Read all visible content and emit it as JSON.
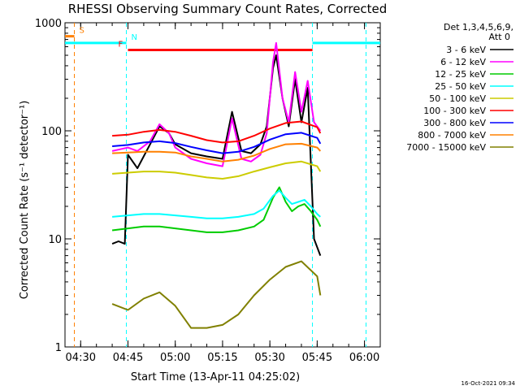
{
  "chart_data": {
    "type": "line",
    "title": "RHESSI Observing Summary Count Rates, Corrected",
    "xlabel": "Start Time (13-Apr-11 04:25:02)",
    "ylabel": "Corrected Count Rate (s⁻¹ detector⁻¹)",
    "yscale": "log",
    "ylim": [
      1,
      1000
    ],
    "xlim": [
      "04:25:02",
      "06:05:00"
    ],
    "x_ticks": [
      "04:30",
      "04:45",
      "05:00",
      "05:15",
      "05:30",
      "05:45",
      "06:00"
    ],
    "y_ticks": [
      "1",
      "10",
      "100",
      "1000"
    ],
    "legend_header": [
      "Det 1,3,4,5,6,9,",
      "Att 0"
    ],
    "legend_placement": "right",
    "series": [
      {
        "name": "3 - 6 keV",
        "color": "#000000",
        "x": [
          "04:40",
          "04:42",
          "04:44",
          "04:45",
          "04:48",
          "04:52",
          "04:55",
          "04:58",
          "05:00",
          "05:05",
          "05:10",
          "05:15",
          "05:18",
          "05:21",
          "05:24",
          "05:27",
          "05:29",
          "05:31",
          "05:32",
          "05:34",
          "05:36",
          "05:38",
          "05:40",
          "05:42",
          "05:44",
          "05:46"
        ],
        "values": [
          9,
          9.5,
          9,
          60,
          45,
          75,
          110,
          95,
          75,
          62,
          58,
          55,
          150,
          65,
          62,
          75,
          110,
          380,
          500,
          200,
          110,
          300,
          120,
          250,
          10,
          7
        ]
      },
      {
        "name": "6 - 12 keV",
        "color": "#ff00ff",
        "x": [
          "04:40",
          "04:43",
          "04:45",
          "04:48",
          "04:52",
          "04:55",
          "04:58",
          "05:00",
          "05:05",
          "05:10",
          "05:15",
          "05:18",
          "05:21",
          "05:24",
          "05:27",
          "05:29",
          "05:31",
          "05:32",
          "05:34",
          "05:36",
          "05:38",
          "05:40",
          "05:42",
          "05:44",
          "05:46"
        ],
        "values": [
          65,
          68,
          70,
          65,
          80,
          115,
          95,
          70,
          55,
          50,
          47,
          130,
          55,
          52,
          60,
          95,
          430,
          650,
          200,
          120,
          350,
          150,
          290,
          120,
          100
        ]
      },
      {
        "name": "12 - 25 keV",
        "color": "#00cc00",
        "x": [
          "04:40",
          "04:45",
          "04:50",
          "04:55",
          "05:00",
          "05:05",
          "05:10",
          "05:15",
          "05:20",
          "05:25",
          "05:28",
          "05:31",
          "05:33",
          "05:35",
          "05:37",
          "05:39",
          "05:41",
          "05:43",
          "05:45",
          "05:46"
        ],
        "values": [
          12,
          12.5,
          13,
          13,
          12.5,
          12,
          11.5,
          11.5,
          12,
          13,
          15,
          24,
          30,
          22,
          18,
          20,
          21,
          18,
          15,
          13
        ]
      },
      {
        "name": "25 - 50 keV",
        "color": "#00ffff",
        "x": [
          "04:40",
          "04:45",
          "04:50",
          "04:55",
          "05:00",
          "05:05",
          "05:10",
          "05:15",
          "05:20",
          "05:25",
          "05:28",
          "05:31",
          "05:33",
          "05:35",
          "05:37",
          "05:39",
          "05:41",
          "05:43",
          "05:45",
          "05:46"
        ],
        "values": [
          16,
          16.5,
          17,
          17,
          16.5,
          16,
          15.5,
          15.5,
          16,
          17,
          19,
          25,
          28,
          24,
          21,
          22,
          23,
          20,
          17,
          16
        ]
      },
      {
        "name": "50 - 100 keV",
        "color": "#cccc00",
        "x": [
          "04:40",
          "04:45",
          "04:50",
          "04:55",
          "05:00",
          "05:05",
          "05:10",
          "05:15",
          "05:20",
          "05:25",
          "05:30",
          "05:35",
          "05:40",
          "05:45",
          "05:46"
        ],
        "values": [
          40,
          41,
          42,
          42,
          41,
          39,
          37,
          36,
          38,
          42,
          46,
          50,
          52,
          47,
          42
        ]
      },
      {
        "name": "100 - 300 keV",
        "color": "#ff0000",
        "x": [
          "04:40",
          "04:45",
          "04:50",
          "04:55",
          "05:00",
          "05:05",
          "05:10",
          "05:15",
          "05:20",
          "05:25",
          "05:30",
          "05:35",
          "05:40",
          "05:45",
          "05:46"
        ],
        "values": [
          90,
          92,
          98,
          102,
          98,
          90,
          82,
          78,
          80,
          90,
          105,
          118,
          122,
          108,
          95
        ]
      },
      {
        "name": "300 - 800 keV",
        "color": "#0000ff",
        "x": [
          "04:40",
          "04:45",
          "04:50",
          "04:55",
          "05:00",
          "05:05",
          "05:10",
          "05:15",
          "05:20",
          "05:25",
          "05:30",
          "05:35",
          "05:40",
          "05:45",
          "05:46"
        ],
        "values": [
          72,
          74,
          78,
          80,
          77,
          71,
          66,
          62,
          64,
          71,
          83,
          93,
          96,
          86,
          76
        ]
      },
      {
        "name": "800 - 7000 keV",
        "color": "#ff8000",
        "x": [
          "04:40",
          "04:45",
          "04:50",
          "04:55",
          "05:00",
          "05:05",
          "05:10",
          "05:15",
          "05:20",
          "05:25",
          "05:30",
          "05:35",
          "05:40",
          "05:45",
          "05:46"
        ],
        "values": [
          62,
          63,
          64,
          64,
          63,
          58,
          55,
          52,
          54,
          59,
          68,
          75,
          76,
          70,
          65
        ]
      },
      {
        "name": "7000 - 15000 keV",
        "color": "#808000",
        "x": [
          "04:40",
          "04:45",
          "04:50",
          "04:55",
          "05:00",
          "05:05",
          "05:10",
          "05:15",
          "05:20",
          "05:25",
          "05:30",
          "05:35",
          "05:40",
          "05:45",
          "05:46"
        ],
        "values": [
          2.5,
          2.2,
          2.8,
          3.2,
          2.4,
          1.5,
          1.5,
          1.6,
          2.0,
          3.0,
          4.2,
          5.5,
          6.2,
          4.5,
          3.0
        ]
      }
    ],
    "intervals": [
      {
        "label": "S",
        "color": "#ff8000",
        "start": "04:25:02",
        "end": "04:28:00",
        "level": 750,
        "marker_at": "04:28:00"
      },
      {
        "label": "N",
        "color": "#00ffff",
        "start": "04:25:02",
        "end": "04:44:30",
        "level": 650,
        "marker_at": "04:44:30"
      },
      {
        "label": "F",
        "color": "#ff0000",
        "start": "04:45:00",
        "end": "05:43:30",
        "level": 560,
        "marker_at": null
      },
      {
        "label": "",
        "color": "#00ffff",
        "start": "05:43:30",
        "end": "06:05:00",
        "level": 650,
        "marker_at": "05:43:30"
      }
    ],
    "vertical_markers": [
      {
        "at": "04:28:00",
        "color": "#ff8000"
      },
      {
        "at": "04:44:30",
        "color": "#00ffff"
      },
      {
        "at": "05:43:30",
        "color": "#00ffff"
      },
      {
        "at": "06:00:30",
        "color": "#00ffff"
      }
    ]
  },
  "timestamp": "16-Oct-2021 09:34"
}
